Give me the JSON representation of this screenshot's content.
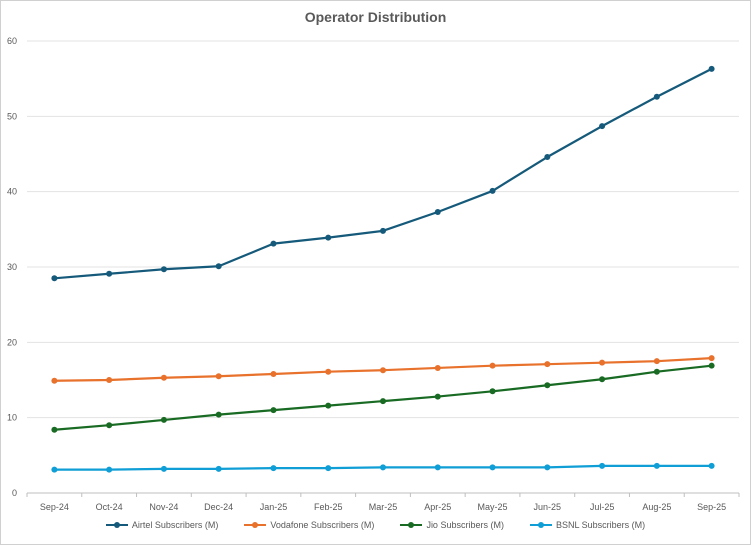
{
  "chart_data": {
    "type": "line",
    "title": "Operator Distribution",
    "xlabel": "",
    "ylabel": "",
    "ylim": [
      0,
      60
    ],
    "yticks": [
      0,
      10,
      20,
      30,
      40,
      50,
      60
    ],
    "grid": true,
    "legend_position": "bottom",
    "categories": [
      "Sep-24",
      "Oct-24",
      "Nov-24",
      "Dec-24",
      "Jan-25",
      "Feb-25",
      "Mar-25",
      "Apr-25",
      "May-25",
      "Jun-25",
      "Jul-25",
      "Aug-25",
      "Sep-25"
    ],
    "series": [
      {
        "name": "Airtel Subscribers (M)",
        "color": "#155a7a",
        "values": [
          28.5,
          29.1,
          29.7,
          30.1,
          33.1,
          33.9,
          34.8,
          37.3,
          40.1,
          44.6,
          48.7,
          52.6,
          56.3
        ]
      },
      {
        "name": "Vodafone Subscribers (M)",
        "color": "#e8712c",
        "values": [
          14.9,
          15.0,
          15.3,
          15.5,
          15.8,
          16.1,
          16.3,
          16.6,
          16.9,
          17.1,
          17.3,
          17.5,
          17.9
        ]
      },
      {
        "name": "Jio Subscribers (M)",
        "color": "#196b24",
        "values": [
          8.4,
          9.0,
          9.7,
          10.4,
          11.0,
          11.6,
          12.2,
          12.8,
          13.5,
          14.3,
          15.1,
          16.1,
          16.9
        ]
      },
      {
        "name": "BSNL Subscribers (M)",
        "color": "#0f9ed5",
        "values": [
          3.1,
          3.1,
          3.2,
          3.2,
          3.3,
          3.3,
          3.4,
          3.4,
          3.4,
          3.4,
          3.6,
          3.6,
          3.6
        ]
      }
    ]
  }
}
